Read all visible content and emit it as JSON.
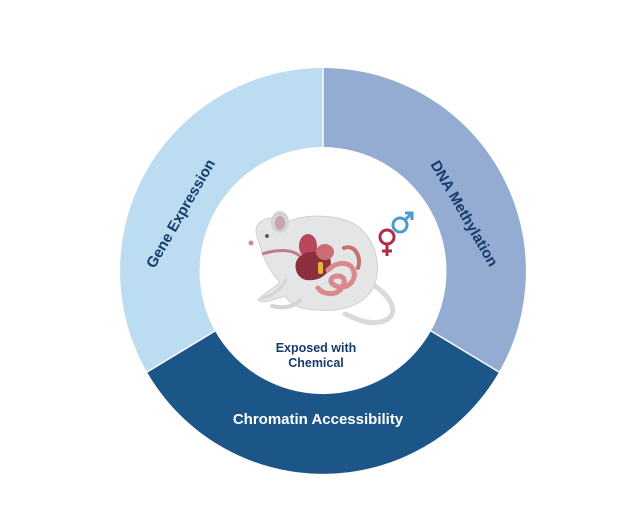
{
  "diagram": {
    "segments": [
      {
        "id": "gene-expression",
        "label": "Gene Expression",
        "color": "#bcdcf2"
      },
      {
        "id": "dna-methylation",
        "label": "DNA Methylation",
        "color": "#94abd2"
      },
      {
        "id": "chromatin-accessibility",
        "label": "Chromatin Accessibility",
        "color": "#1c5588"
      }
    ],
    "center": {
      "line1": "Exposed with",
      "line2": "Chemical",
      "background": "#ffffff"
    },
    "icons": {
      "subject": "mouse-anatomy-icon",
      "sex": "male-female-symbol-icon"
    },
    "colors": {
      "label_dark": "#173c6b",
      "label_light": "#ffffff",
      "male_symbol": "#4a9bd1",
      "female_symbol": "#b3294a"
    }
  }
}
